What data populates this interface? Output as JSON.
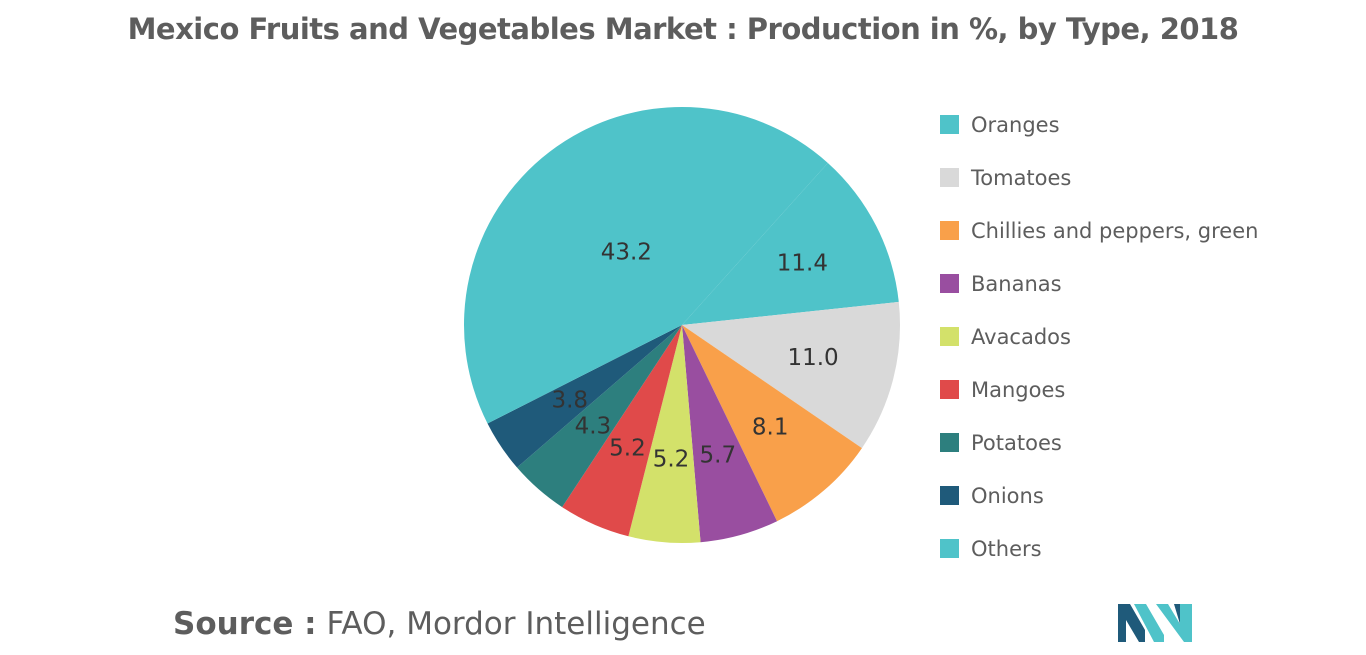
{
  "chart_data": {
    "type": "pie",
    "title": "Mexico Fruits and Vegetables Market : Production in %, by Type, 2018",
    "categories": [
      "Oranges",
      "Tomatoes",
      "Chillies and peppers, green",
      "Bananas",
      "Avacados",
      "Mangoes",
      "Potatoes",
      "Onions",
      "Others"
    ],
    "values": [
      11.4,
      11.0,
      8.1,
      5.7,
      5.2,
      5.2,
      4.3,
      3.8,
      43.2
    ],
    "colors": [
      "#4fc3c9",
      "#d9d9d9",
      "#f9a04a",
      "#994ea0",
      "#d3e16a",
      "#e04a4a",
      "#2d7f7e",
      "#1f5a7a",
      "#4fc3c9"
    ],
    "legend_position": "right"
  },
  "source": {
    "label": "Source :",
    "text": "FAO, Mordor Intelligence"
  },
  "logo": {
    "name": "mordor-intelligence-logo",
    "colors": [
      "#1f5a7a",
      "#4fc3c9"
    ]
  }
}
